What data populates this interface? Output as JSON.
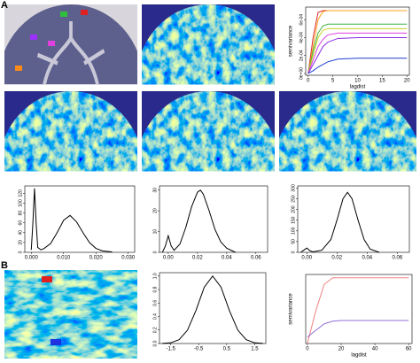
{
  "panel_labels": [
    "A",
    "B"
  ],
  "chart_data": [
    {
      "type": "line",
      "x_label": "lagdist",
      "y_label": "semivariance",
      "x": [
        0,
        1,
        2,
        3,
        4,
        6,
        10,
        15,
        20
      ],
      "xlim": [
        -0.5,
        20.5
      ],
      "xticks": [
        0,
        5,
        10,
        15,
        20
      ],
      "ylim": [
        -2e-05,
        0.00074
      ],
      "yticks": [
        {
          "value": 0,
          "label": "0e+00"
        },
        {
          "value": 0.0002,
          "label": "2e-04"
        },
        {
          "value": 0.0004,
          "label": "4e-04"
        },
        {
          "value": 0.0006,
          "label": "6e-04"
        }
      ],
      "series": [
        {
          "color": "#d62728",
          "values": [
            0,
            0.0004,
            0.00068,
            0.0007,
            0.0007,
            0.0007,
            0.0007,
            0.0007,
            0.0007
          ]
        },
        {
          "color": "#ff9f1a",
          "values": [
            0,
            0.0003,
            0.0006,
            0.00069,
            0.0007,
            0.0007,
            0.0007,
            0.0007,
            0.0007
          ]
        },
        {
          "color": "#3cb043",
          "values": [
            0,
            0.00025,
            0.00045,
            0.00053,
            0.00055,
            0.00055,
            0.00055,
            0.00055,
            0.00055
          ]
        },
        {
          "color": "#c8d42a",
          "values": [
            0,
            0.0002,
            0.0004,
            0.00048,
            0.0005,
            0.0005,
            0.0005,
            0.0005,
            0.0005
          ]
        },
        {
          "color": "#e040e0",
          "values": [
            0,
            0.00015,
            0.0003,
            0.00038,
            0.00043,
            0.00045,
            0.00045,
            0.00045,
            0.00045
          ]
        },
        {
          "color": "#8a2be2",
          "values": [
            0,
            0.0001,
            0.0002,
            0.0003,
            0.00035,
            0.00039,
            0.0004,
            0.0004,
            0.0004
          ]
        },
        {
          "color": "#1f3fd6",
          "values": [
            0,
            3e-05,
            7e-05,
            0.0001,
            0.00013,
            0.00016,
            0.00017,
            0.00017,
            0.00017
          ]
        }
      ]
    },
    {
      "type": "line",
      "x": [
        0,
        0.0005,
        0.001,
        0.0015,
        0.002,
        0.003,
        0.004,
        0.006,
        0.008,
        0.01,
        0.012,
        0.014,
        0.016,
        0.018,
        0.02,
        0.022,
        0.025
      ],
      "xlim": [
        -0.002,
        0.032
      ],
      "xticks": [
        {
          "value": 0,
          "label": "0.000"
        },
        {
          "value": 0.01,
          "label": "0.010"
        },
        {
          "value": 0.02,
          "label": "0.020"
        },
        {
          "value": 0.03,
          "label": "0.030"
        }
      ],
      "ylim": [
        0,
        135
      ],
      "yticks": [
        0,
        20,
        40,
        60,
        80,
        100,
        120
      ],
      "series": [
        {
          "color": "#000000",
          "values": [
            5,
            60,
            130,
            60,
            10,
            5,
            8,
            18,
            40,
            65,
            75,
            62,
            40,
            20,
            8,
            3,
            1
          ]
        }
      ]
    },
    {
      "type": "line",
      "x": [
        -0.004,
        -0.002,
        0,
        0.002,
        0.004,
        0.008,
        0.012,
        0.016,
        0.02,
        0.022,
        0.024,
        0.028,
        0.032,
        0.036,
        0.04,
        0.046
      ],
      "xlim": [
        -0.006,
        0.068
      ],
      "xticks": [
        {
          "value": 0,
          "label": "0.00"
        },
        {
          "value": 0.02,
          "label": "0.02"
        },
        {
          "value": 0.04,
          "label": "0.04"
        },
        {
          "value": 0.06,
          "label": "0.06"
        }
      ],
      "ylim": [
        0,
        32
      ],
      "yticks": [
        0,
        10,
        20,
        30
      ],
      "series": [
        {
          "color": "#000000",
          "values": [
            0,
            3,
            8,
            3,
            1,
            4,
            12,
            22,
            29,
            30,
            28,
            20,
            11,
            5,
            2,
            0
          ]
        }
      ]
    },
    {
      "type": "line",
      "x": [
        -0.004,
        -0.002,
        0,
        0.002,
        0.004,
        0.01,
        0.016,
        0.02,
        0.024,
        0.027,
        0.03,
        0.034,
        0.038,
        0.042,
        0.048
      ],
      "xlim": [
        -0.006,
        0.068
      ],
      "xticks": [
        {
          "value": 0,
          "label": "0.00"
        },
        {
          "value": 0.02,
          "label": "0.02"
        },
        {
          "value": 0.04,
          "label": "0.04"
        },
        {
          "value": 0.06,
          "label": "0.06"
        }
      ],
      "ylim": [
        0,
        310
      ],
      "yticks": [
        0,
        50,
        100,
        150,
        200,
        250,
        300
      ],
      "series": [
        {
          "color": "#000000",
          "values": [
            0,
            10,
            20,
            8,
            2,
            10,
            60,
            150,
            250,
            280,
            250,
            150,
            60,
            15,
            0
          ]
        }
      ]
    },
    {
      "type": "line",
      "x": [
        -1.8,
        -1.5,
        -1.2,
        -0.9,
        -0.6,
        -0.3,
        0,
        0.3,
        0.6,
        0.9,
        1.2,
        1.5,
        1.8
      ],
      "xlim": [
        -1.9,
        1.9
      ],
      "xticks": [
        -1.5,
        -0.5,
        0.5,
        1.5
      ],
      "ylim": [
        0,
        1.05
      ],
      "yticks": [
        {
          "value": 0,
          "label": "0.0"
        },
        0.2,
        0.4,
        0.6,
        0.8,
        {
          "value": 1,
          "label": "1.0"
        }
      ],
      "series": [
        {
          "color": "#000000",
          "values": [
            0.0015,
            0.011,
            0.056,
            0.198,
            0.487,
            0.835,
            1,
            0.835,
            0.487,
            0.198,
            0.056,
            0.011,
            0.0015
          ]
        }
      ]
    },
    {
      "type": "line",
      "x_label": "lagdist",
      "y_label": "semivariance",
      "x": [
        0,
        5,
        10,
        15,
        20,
        30,
        45,
        60
      ],
      "xlim": [
        -1,
        62
      ],
      "xticks": [
        0,
        20,
        40,
        60
      ],
      "ylim": [
        0,
        1.05
      ],
      "series": [
        {
          "color": "#f08080",
          "values": [
            0,
            0.5,
            0.9,
            1,
            1,
            1,
            1,
            1
          ]
        },
        {
          "color": "#9370db",
          "values": [
            0.1,
            0.2,
            0.3,
            0.34,
            0.35,
            0.35,
            0.35,
            0.35
          ]
        }
      ]
    }
  ]
}
